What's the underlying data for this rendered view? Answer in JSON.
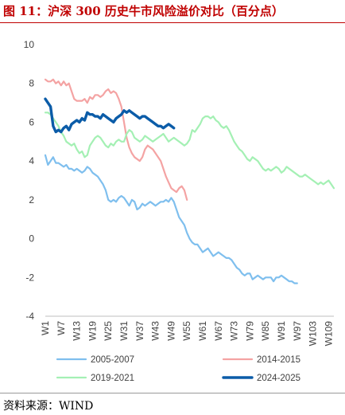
{
  "header": {
    "title": "图 11：沪深 300 历史牛市风险溢价对比（百分点）"
  },
  "footer": {
    "source": "资料来源：WIND"
  },
  "chart_data": {
    "type": "line",
    "ylim": [
      -4,
      10
    ],
    "yticks": [
      -4,
      -2,
      0,
      2,
      4,
      6,
      8,
      10
    ],
    "xlim": [
      1,
      111
    ],
    "xticks": [
      "W1",
      "W7",
      "W13",
      "W19",
      "W25",
      "W31",
      "W37",
      "W43",
      "W49",
      "W55",
      "W61",
      "W67",
      "W73",
      "W79",
      "W85",
      "W91",
      "W97",
      "W103",
      "W109"
    ],
    "xtick_values": [
      1,
      7,
      13,
      19,
      25,
      31,
      37,
      43,
      49,
      55,
      61,
      67,
      73,
      79,
      85,
      91,
      97,
      103,
      109
    ],
    "legend": "bottom",
    "series": [
      {
        "name": "2005-2007",
        "color": "#7fbfee",
        "width": 2.2,
        "x": [
          1,
          2,
          3,
          4,
          5,
          6,
          7,
          8,
          9,
          10,
          11,
          12,
          13,
          14,
          15,
          16,
          17,
          18,
          19,
          20,
          21,
          22,
          23,
          24,
          25,
          26,
          27,
          28,
          29,
          30,
          31,
          32,
          33,
          34,
          35,
          36,
          37,
          38,
          39,
          40,
          41,
          42,
          43,
          44,
          45,
          46,
          47,
          48,
          49,
          50,
          51,
          52,
          53,
          54,
          55,
          56,
          57,
          58,
          59,
          60,
          61,
          62,
          63,
          64,
          65,
          66,
          67,
          68,
          69,
          70,
          71,
          72,
          73,
          74,
          75,
          76,
          77,
          78,
          79,
          80,
          81,
          82,
          83,
          84,
          85,
          86,
          87,
          88,
          89,
          90,
          91,
          92,
          93,
          94,
          95,
          96,
          97
        ],
        "y": [
          4.3,
          3.8,
          4.0,
          4.2,
          3.9,
          3.9,
          3.8,
          3.7,
          3.8,
          3.6,
          3.6,
          3.5,
          3.6,
          3.5,
          3.4,
          3.5,
          3.7,
          3.6,
          3.4,
          3.3,
          3.2,
          3.0,
          2.8,
          2.5,
          2.0,
          1.9,
          2.0,
          1.9,
          2.1,
          2.2,
          2.1,
          1.9,
          1.7,
          2.0,
          1.9,
          1.5,
          1.6,
          1.8,
          1.7,
          1.8,
          1.9,
          1.8,
          1.7,
          1.8,
          1.9,
          1.9,
          2.0,
          1.9,
          2.1,
          1.9,
          1.5,
          1.1,
          0.9,
          0.7,
          0.3,
          0.0,
          -0.2,
          -0.3,
          -0.3,
          -0.5,
          -0.7,
          -0.6,
          -0.5,
          -0.7,
          -0.9,
          -0.8,
          -0.7,
          -0.8,
          -0.9,
          -1.0,
          -1.0,
          -1.1,
          -1.3,
          -1.5,
          -1.6,
          -1.8,
          -1.9,
          -1.8,
          -1.8,
          -2.1,
          -2.0,
          -1.9,
          -2.0,
          -2.1,
          -2.0,
          -2.0,
          -2.0,
          -2.2,
          -2.0,
          -2.0,
          -1.9,
          -2.0,
          -2.1,
          -2.2,
          -2.2,
          -2.3,
          -2.3
        ]
      },
      {
        "name": "2014-2015",
        "color": "#f4a3a3",
        "width": 2.2,
        "x": [
          1,
          2,
          3,
          4,
          5,
          6,
          7,
          8,
          9,
          10,
          11,
          12,
          13,
          14,
          15,
          16,
          17,
          18,
          19,
          20,
          21,
          22,
          23,
          24,
          25,
          26,
          27,
          28,
          29,
          30,
          31,
          32,
          33,
          34,
          35,
          36,
          37,
          38,
          39,
          40,
          41,
          42,
          43,
          44,
          45,
          46,
          47,
          48,
          49,
          50,
          51,
          52,
          53,
          54,
          55
        ],
        "y": [
          8.2,
          8.1,
          8.1,
          8.2,
          8.0,
          8.1,
          7.9,
          8.1,
          7.9,
          8.0,
          7.6,
          7.2,
          7.1,
          7.1,
          7.1,
          7.2,
          7.0,
          7.3,
          7.2,
          7.4,
          7.4,
          7.3,
          7.4,
          7.6,
          7.7,
          7.5,
          7.6,
          7.5,
          7.2,
          6.8,
          6.0,
          5.2,
          4.7,
          4.4,
          4.2,
          4.1,
          4.0,
          4.2,
          4.6,
          4.8,
          4.7,
          4.6,
          4.4,
          4.2,
          4.0,
          3.6,
          3.2,
          2.9,
          2.6,
          2.5,
          2.4,
          2.6,
          2.7,
          2.5,
          2.0
        ]
      },
      {
        "name": "2019-2021",
        "color": "#a4f0b4",
        "width": 2.2,
        "x": [
          1,
          2,
          3,
          4,
          5,
          6,
          7,
          8,
          9,
          10,
          11,
          12,
          13,
          14,
          15,
          16,
          17,
          18,
          19,
          20,
          21,
          22,
          23,
          24,
          25,
          26,
          27,
          28,
          29,
          30,
          31,
          32,
          33,
          34,
          35,
          36,
          37,
          38,
          39,
          40,
          41,
          42,
          43,
          44,
          45,
          46,
          47,
          48,
          49,
          50,
          51,
          52,
          53,
          54,
          55,
          56,
          57,
          58,
          59,
          60,
          61,
          62,
          63,
          64,
          65,
          66,
          67,
          68,
          69,
          70,
          71,
          72,
          73,
          74,
          75,
          76,
          77,
          78,
          79,
          80,
          81,
          82,
          83,
          84,
          85,
          86,
          87,
          88,
          89,
          90,
          91,
          92,
          93,
          94,
          95,
          96,
          97,
          98,
          99,
          100,
          101,
          102,
          103,
          104,
          105,
          106,
          107,
          108,
          109,
          110,
          111
        ],
        "y": [
          6.5,
          6.5,
          6.4,
          6.2,
          6.0,
          5.8,
          5.5,
          5.3,
          5.0,
          4.9,
          4.8,
          4.9,
          4.6,
          4.4,
          4.5,
          4.2,
          4.3,
          4.8,
          5.0,
          5.2,
          5.3,
          5.2,
          5.0,
          4.8,
          4.7,
          4.9,
          4.8,
          5.0,
          5.1,
          5.0,
          5.0,
          5.4,
          5.6,
          5.5,
          5.2,
          5.1,
          5.0,
          5.1,
          5.3,
          5.2,
          5.1,
          5.0,
          5.1,
          5.2,
          5.3,
          5.4,
          5.2,
          5.0,
          5.1,
          5.2,
          5.1,
          5.0,
          4.9,
          4.8,
          4.9,
          5.1,
          5.6,
          5.5,
          5.7,
          5.9,
          6.2,
          6.3,
          6.3,
          6.2,
          6.3,
          6.1,
          6.0,
          5.8,
          5.7,
          5.8,
          5.6,
          5.3,
          5.0,
          4.8,
          4.6,
          4.5,
          4.3,
          4.1,
          4.0,
          4.2,
          4.1,
          4.0,
          3.8,
          3.6,
          3.5,
          3.6,
          3.5,
          3.6,
          3.7,
          3.6,
          3.4,
          3.5,
          3.7,
          3.6,
          3.5,
          3.4,
          3.3,
          3.2,
          3.2,
          3.3,
          3.2,
          3.1,
          3.0,
          2.9,
          2.8,
          2.9,
          2.8,
          2.9,
          3.0,
          2.8,
          2.6
        ]
      },
      {
        "name": "2024-2025",
        "color": "#0b5ca8",
        "width": 3.4,
        "x": [
          1,
          2,
          3,
          4,
          5,
          6,
          7,
          8,
          9,
          10,
          11,
          12,
          13,
          14,
          15,
          16,
          17,
          18,
          19,
          20,
          21,
          22,
          23,
          24,
          25,
          26,
          27,
          28,
          29,
          30,
          31,
          32,
          33,
          34,
          35,
          36,
          37,
          38,
          39,
          40,
          41,
          42,
          43,
          44,
          45,
          46,
          47,
          48,
          49,
          50
        ],
        "y": [
          7.2,
          7.0,
          6.8,
          5.8,
          5.5,
          5.6,
          5.5,
          5.7,
          5.8,
          5.6,
          5.9,
          6.0,
          6.1,
          6.0,
          6.2,
          6.1,
          6.5,
          6.4,
          6.4,
          6.3,
          6.3,
          6.2,
          6.4,
          6.3,
          6.2,
          6.1,
          6.0,
          6.2,
          6.3,
          6.4,
          6.6,
          6.5,
          6.6,
          6.5,
          6.4,
          6.3,
          6.2,
          6.3,
          6.3,
          6.2,
          6.1,
          6.0,
          5.9,
          5.8,
          5.8,
          5.7,
          5.8,
          5.9,
          5.8,
          5.7
        ]
      }
    ]
  }
}
